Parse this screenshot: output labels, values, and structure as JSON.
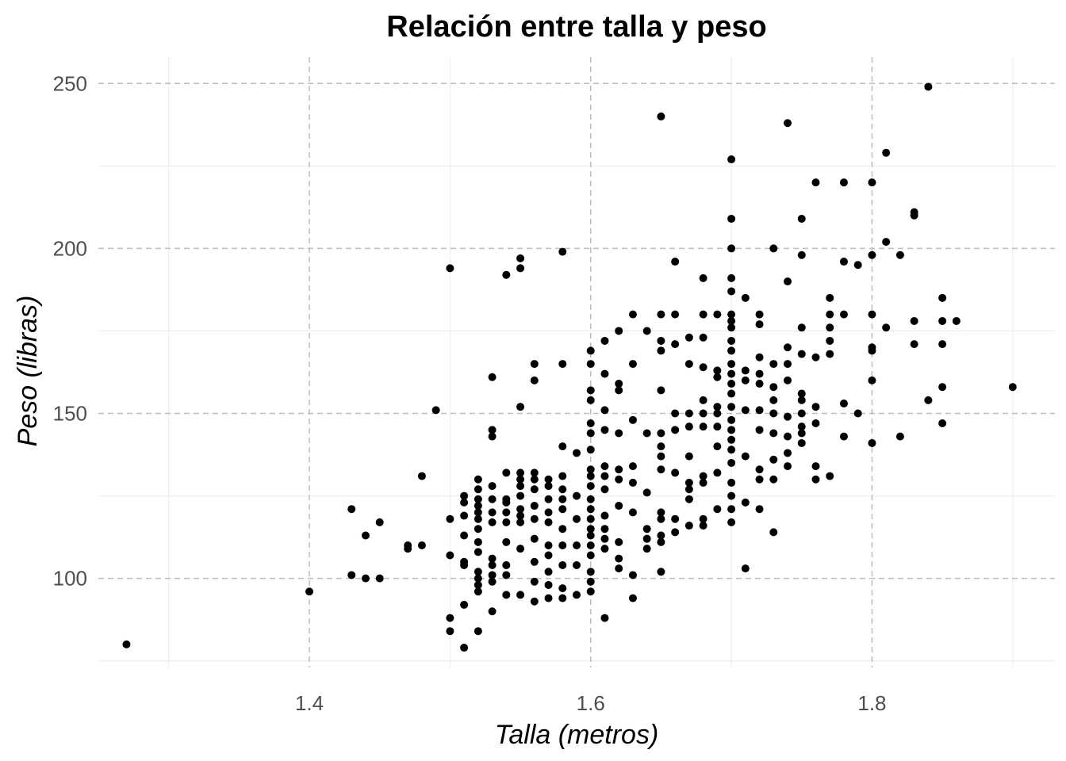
{
  "chart_data": {
    "type": "scatter",
    "title": "Relación entre talla y peso",
    "xlabel": "Talla (metros)",
    "ylabel": "Peso (libras)",
    "xlim": [
      1.25,
      1.93
    ],
    "ylim": [
      73,
      258
    ],
    "x_ticks": [
      1.4,
      1.6,
      1.8
    ],
    "x_tick_labels": [
      "1.4",
      "1.6",
      "1.8"
    ],
    "y_ticks": [
      100,
      150,
      200,
      250
    ],
    "y_tick_labels": [
      "100",
      "150",
      "200",
      "250"
    ],
    "x_minor_ticks": [
      1.3,
      1.5,
      1.7,
      1.9
    ],
    "y_minor_ticks": [
      75,
      125,
      175,
      225
    ],
    "grid": true,
    "point_color": "#000000",
    "points": [
      [
        1.27,
        80
      ],
      [
        1.4,
        96
      ],
      [
        1.43,
        121
      ],
      [
        1.43,
        101
      ],
      [
        1.44,
        113
      ],
      [
        1.44,
        100
      ],
      [
        1.45,
        117
      ],
      [
        1.45,
        100
      ],
      [
        1.47,
        110
      ],
      [
        1.47,
        109
      ],
      [
        1.48,
        131
      ],
      [
        1.48,
        110
      ],
      [
        1.49,
        151
      ],
      [
        1.5,
        194
      ],
      [
        1.5,
        118
      ],
      [
        1.5,
        107
      ],
      [
        1.5,
        88
      ],
      [
        1.5,
        84
      ],
      [
        1.51,
        125
      ],
      [
        1.51,
        123
      ],
      [
        1.51,
        119
      ],
      [
        1.51,
        113
      ],
      [
        1.51,
        105
      ],
      [
        1.51,
        104
      ],
      [
        1.51,
        92
      ],
      [
        1.51,
        79
      ],
      [
        1.52,
        130
      ],
      [
        1.52,
        127
      ],
      [
        1.52,
        124
      ],
      [
        1.52,
        122
      ],
      [
        1.52,
        120
      ],
      [
        1.52,
        118
      ],
      [
        1.52,
        115
      ],
      [
        1.52,
        111
      ],
      [
        1.52,
        108
      ],
      [
        1.52,
        102
      ],
      [
        1.52,
        100
      ],
      [
        1.52,
        98
      ],
      [
        1.52,
        96
      ],
      [
        1.52,
        84
      ],
      [
        1.53,
        161
      ],
      [
        1.53,
        145
      ],
      [
        1.53,
        143
      ],
      [
        1.53,
        128
      ],
      [
        1.53,
        124
      ],
      [
        1.53,
        120
      ],
      [
        1.53,
        117
      ],
      [
        1.53,
        106
      ],
      [
        1.53,
        104
      ],
      [
        1.53,
        101
      ],
      [
        1.53,
        99
      ],
      [
        1.53,
        90
      ],
      [
        1.54,
        192
      ],
      [
        1.54,
        132
      ],
      [
        1.54,
        124
      ],
      [
        1.54,
        123
      ],
      [
        1.54,
        120
      ],
      [
        1.54,
        117
      ],
      [
        1.54,
        111
      ],
      [
        1.54,
        104
      ],
      [
        1.54,
        101
      ],
      [
        1.54,
        95
      ],
      [
        1.55,
        197
      ],
      [
        1.55,
        194
      ],
      [
        1.55,
        152
      ],
      [
        1.55,
        132
      ],
      [
        1.55,
        130
      ],
      [
        1.55,
        128
      ],
      [
        1.55,
        125
      ],
      [
        1.55,
        121
      ],
      [
        1.55,
        119
      ],
      [
        1.55,
        117
      ],
      [
        1.55,
        109
      ],
      [
        1.55,
        95
      ],
      [
        1.56,
        165
      ],
      [
        1.56,
        160
      ],
      [
        1.56,
        132
      ],
      [
        1.56,
        130
      ],
      [
        1.56,
        127
      ],
      [
        1.56,
        122
      ],
      [
        1.56,
        118
      ],
      [
        1.56,
        112
      ],
      [
        1.56,
        105
      ],
      [
        1.56,
        99
      ],
      [
        1.56,
        93
      ],
      [
        1.57,
        130
      ],
      [
        1.57,
        128
      ],
      [
        1.57,
        124
      ],
      [
        1.57,
        120
      ],
      [
        1.57,
        117
      ],
      [
        1.57,
        110
      ],
      [
        1.57,
        107
      ],
      [
        1.57,
        102
      ],
      [
        1.57,
        98
      ],
      [
        1.57,
        94
      ],
      [
        1.58,
        199
      ],
      [
        1.58,
        165
      ],
      [
        1.58,
        140
      ],
      [
        1.58,
        131
      ],
      [
        1.58,
        127
      ],
      [
        1.58,
        124
      ],
      [
        1.58,
        121
      ],
      [
        1.58,
        115
      ],
      [
        1.58,
        110
      ],
      [
        1.58,
        104
      ],
      [
        1.58,
        97
      ],
      [
        1.58,
        94
      ],
      [
        1.59,
        138
      ],
      [
        1.59,
        125
      ],
      [
        1.59,
        118
      ],
      [
        1.59,
        110
      ],
      [
        1.59,
        104
      ],
      [
        1.59,
        95
      ],
      [
        1.6,
        169
      ],
      [
        1.6,
        165
      ],
      [
        1.6,
        157
      ],
      [
        1.6,
        154
      ],
      [
        1.6,
        147
      ],
      [
        1.6,
        144
      ],
      [
        1.6,
        139
      ],
      [
        1.6,
        133
      ],
      [
        1.6,
        131
      ],
      [
        1.6,
        128
      ],
      [
        1.6,
        124
      ],
      [
        1.6,
        121
      ],
      [
        1.6,
        118
      ],
      [
        1.6,
        115
      ],
      [
        1.6,
        113
      ],
      [
        1.6,
        110
      ],
      [
        1.6,
        107
      ],
      [
        1.6,
        102
      ],
      [
        1.6,
        99
      ],
      [
        1.6,
        96
      ],
      [
        1.61,
        172
      ],
      [
        1.61,
        162
      ],
      [
        1.61,
        151
      ],
      [
        1.61,
        145
      ],
      [
        1.61,
        134
      ],
      [
        1.61,
        131
      ],
      [
        1.61,
        127
      ],
      [
        1.61,
        119
      ],
      [
        1.61,
        115
      ],
      [
        1.61,
        112
      ],
      [
        1.61,
        109
      ],
      [
        1.61,
        88
      ],
      [
        1.62,
        175
      ],
      [
        1.62,
        159
      ],
      [
        1.62,
        157
      ],
      [
        1.62,
        144
      ],
      [
        1.62,
        133
      ],
      [
        1.62,
        130
      ],
      [
        1.62,
        122
      ],
      [
        1.62,
        111
      ],
      [
        1.62,
        106
      ],
      [
        1.62,
        103
      ],
      [
        1.63,
        180
      ],
      [
        1.63,
        165
      ],
      [
        1.63,
        148
      ],
      [
        1.63,
        134
      ],
      [
        1.63,
        129
      ],
      [
        1.63,
        120
      ],
      [
        1.63,
        101
      ],
      [
        1.63,
        94
      ],
      [
        1.64,
        175
      ],
      [
        1.64,
        144
      ],
      [
        1.64,
        126
      ],
      [
        1.64,
        115
      ],
      [
        1.64,
        112
      ],
      [
        1.64,
        109
      ],
      [
        1.65,
        240
      ],
      [
        1.65,
        180
      ],
      [
        1.65,
        172
      ],
      [
        1.65,
        169
      ],
      [
        1.65,
        157
      ],
      [
        1.65,
        144
      ],
      [
        1.65,
        140
      ],
      [
        1.65,
        137
      ],
      [
        1.65,
        133
      ],
      [
        1.65,
        120
      ],
      [
        1.65,
        118
      ],
      [
        1.65,
        113
      ],
      [
        1.65,
        111
      ],
      [
        1.65,
        102
      ],
      [
        1.66,
        196
      ],
      [
        1.66,
        180
      ],
      [
        1.66,
        171
      ],
      [
        1.66,
        150
      ],
      [
        1.66,
        145
      ],
      [
        1.66,
        132
      ],
      [
        1.66,
        118
      ],
      [
        1.66,
        114
      ],
      [
        1.67,
        173
      ],
      [
        1.67,
        165
      ],
      [
        1.67,
        150
      ],
      [
        1.67,
        146
      ],
      [
        1.67,
        137
      ],
      [
        1.67,
        129
      ],
      [
        1.67,
        127
      ],
      [
        1.67,
        124
      ],
      [
        1.67,
        116
      ],
      [
        1.68,
        191
      ],
      [
        1.68,
        180
      ],
      [
        1.68,
        173
      ],
      [
        1.68,
        164
      ],
      [
        1.68,
        154
      ],
      [
        1.68,
        150
      ],
      [
        1.68,
        146
      ],
      [
        1.68,
        131
      ],
      [
        1.68,
        129
      ],
      [
        1.68,
        118
      ],
      [
        1.68,
        116
      ],
      [
        1.69,
        180
      ],
      [
        1.69,
        163
      ],
      [
        1.69,
        161
      ],
      [
        1.69,
        152
      ],
      [
        1.69,
        150
      ],
      [
        1.69,
        146
      ],
      [
        1.69,
        140
      ],
      [
        1.69,
        132
      ],
      [
        1.69,
        121
      ],
      [
        1.7,
        227
      ],
      [
        1.7,
        209
      ],
      [
        1.7,
        200
      ],
      [
        1.7,
        191
      ],
      [
        1.7,
        187
      ],
      [
        1.7,
        180
      ],
      [
        1.7,
        178
      ],
      [
        1.7,
        176
      ],
      [
        1.7,
        172
      ],
      [
        1.7,
        169
      ],
      [
        1.7,
        165
      ],
      [
        1.7,
        162
      ],
      [
        1.7,
        159
      ],
      [
        1.7,
        156
      ],
      [
        1.7,
        152
      ],
      [
        1.7,
        148
      ],
      [
        1.7,
        145
      ],
      [
        1.7,
        142
      ],
      [
        1.7,
        139
      ],
      [
        1.7,
        135
      ],
      [
        1.7,
        129
      ],
      [
        1.7,
        125
      ],
      [
        1.7,
        121
      ],
      [
        1.7,
        117
      ],
      [
        1.71,
        185
      ],
      [
        1.71,
        163
      ],
      [
        1.71,
        160
      ],
      [
        1.71,
        151
      ],
      [
        1.71,
        137
      ],
      [
        1.71,
        123
      ],
      [
        1.71,
        103
      ],
      [
        1.72,
        180
      ],
      [
        1.72,
        177
      ],
      [
        1.72,
        167
      ],
      [
        1.72,
        162
      ],
      [
        1.72,
        159
      ],
      [
        1.72,
        151
      ],
      [
        1.72,
        145
      ],
      [
        1.72,
        133
      ],
      [
        1.72,
        130
      ],
      [
        1.72,
        121
      ],
      [
        1.73,
        200
      ],
      [
        1.73,
        165
      ],
      [
        1.73,
        158
      ],
      [
        1.73,
        154
      ],
      [
        1.73,
        150
      ],
      [
        1.73,
        144
      ],
      [
        1.73,
        136
      ],
      [
        1.73,
        130
      ],
      [
        1.73,
        114
      ],
      [
        1.74,
        238
      ],
      [
        1.74,
        190
      ],
      [
        1.74,
        170
      ],
      [
        1.74,
        165
      ],
      [
        1.74,
        160
      ],
      [
        1.74,
        149
      ],
      [
        1.74,
        143
      ],
      [
        1.74,
        138
      ],
      [
        1.74,
        134
      ],
      [
        1.75,
        209
      ],
      [
        1.75,
        198
      ],
      [
        1.75,
        176
      ],
      [
        1.75,
        168
      ],
      [
        1.75,
        156
      ],
      [
        1.75,
        154
      ],
      [
        1.75,
        150
      ],
      [
        1.75,
        146
      ],
      [
        1.75,
        144
      ],
      [
        1.75,
        141
      ],
      [
        1.76,
        220
      ],
      [
        1.76,
        167
      ],
      [
        1.76,
        152
      ],
      [
        1.76,
        147
      ],
      [
        1.76,
        134
      ],
      [
        1.76,
        130
      ],
      [
        1.77,
        185
      ],
      [
        1.77,
        180
      ],
      [
        1.77,
        176
      ],
      [
        1.77,
        172
      ],
      [
        1.77,
        168
      ],
      [
        1.77,
        131
      ],
      [
        1.78,
        220
      ],
      [
        1.78,
        196
      ],
      [
        1.78,
        180
      ],
      [
        1.78,
        153
      ],
      [
        1.78,
        143
      ],
      [
        1.79,
        195
      ],
      [
        1.79,
        150
      ],
      [
        1.8,
        220
      ],
      [
        1.8,
        198
      ],
      [
        1.8,
        180
      ],
      [
        1.8,
        170
      ],
      [
        1.8,
        169
      ],
      [
        1.8,
        160
      ],
      [
        1.8,
        141
      ],
      [
        1.81,
        229
      ],
      [
        1.81,
        202
      ],
      [
        1.81,
        176
      ],
      [
        1.82,
        198
      ],
      [
        1.82,
        143
      ],
      [
        1.83,
        211
      ],
      [
        1.83,
        210
      ],
      [
        1.83,
        178
      ],
      [
        1.83,
        171
      ],
      [
        1.84,
        249
      ],
      [
        1.84,
        154
      ],
      [
        1.85,
        185
      ],
      [
        1.85,
        178
      ],
      [
        1.85,
        171
      ],
      [
        1.85,
        158
      ],
      [
        1.85,
        147
      ],
      [
        1.86,
        178
      ],
      [
        1.9,
        158
      ]
    ]
  }
}
